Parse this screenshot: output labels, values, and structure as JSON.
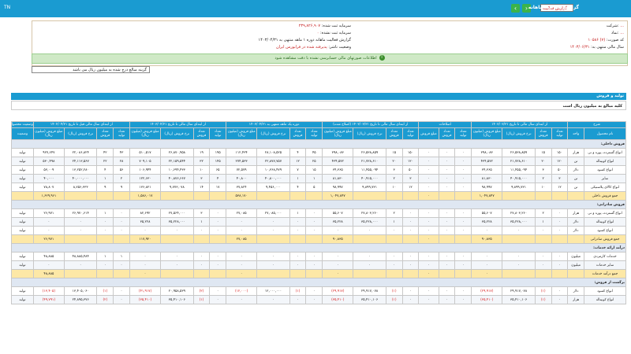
{
  "topbar": {
    "version": "TN",
    "title": "گزارش فعالیت ماهانه",
    "report_select": "گزارش فعالیت",
    "nav_prev": "‹",
    "nav_next": "›"
  },
  "info": {
    "company_label": "شرکت:",
    "company_value": "...",
    "symbol_label": "نماد:",
    "symbol_value": "...",
    "code_label": "کد صورت:",
    "code_value": "(۷) ۱۰۵۸۶",
    "fiscal_label": "سال مالی منتهی به:",
    "fiscal_value": "۱۴۰۳/۰۶/۳۱",
    "capital_label": "سرمایه ثبت شده:",
    "capital_value": "۲۳۹,۸۲۶,۹۰۷",
    "capital2_label": "سرمایه ثبت نشده:",
    "capital2_value": "۰",
    "report_label": "گزارش فعالیت ماهانه دوره ۱ ماهه منتهی به ۱۴۰۳/۰۴/۳۱",
    "status_label": "وضعیت ناشر:",
    "status_value": "پذیرفته شده در فرابورس ایران"
  },
  "success_message": "اطلاعات صورتهای مالی حسابرسی نشده با دقت مشاهده شود",
  "search_text": "گزینه مبالغ درج شده به میلیون ریال می باشد",
  "section": {
    "title": "تولید و فروش",
    "subtitle": "کلیه مبالغ به میلیون ریال است"
  },
  "table": {
    "groups": [
      "شرح",
      "از ابتدای سال مالی تا تاریخ ۱۴۰۳/۰۳/۳۱",
      "اصلاحات",
      "از ابتدای سال مالی تا تاریخ ۱۴۰۳/۰۳/۳۱ (اصلاح شده)",
      "دوره یک ماهه منتهی به ۱۴۰۳/۰۴/۳۱",
      "از ابتدای سال مالی تا تاریخ ۱۴۰۳/۰۴/۳۱",
      "از ابتدای سال مالی قبل تا تاریخ ۱۴۰۲/۰۴/۳۱",
      "وضعیت محصول"
    ],
    "subheaders": [
      "نام محصول",
      "واحد",
      "تعداد تولید",
      "تعداد فروش",
      "نرخ فروش (ریال)",
      "مبلغ فروش (میلیون ریال)",
      "تعداد تولید",
      "تعداد فروش",
      "مبلغ فروش",
      "تعداد تولید",
      "تعداد فروش",
      "نرخ فروش (ریال)",
      "مبلغ فروش (میلیون ریال)",
      "تعداد تولید",
      "تعداد فروش",
      "نرخ فروش (ریال)",
      "مبلغ فروش (میلیون ریال)",
      "تعداد تولید",
      "تعداد فروش",
      "نرخ فروش (ریال)",
      "مبلغ فروش (میلیون ریال)",
      "تعداد تولید",
      "تعداد فروش",
      "نرخ فروش (ریال)",
      "مبلغ فروش (میلیون ریال)",
      "وضعیت"
    ],
    "rows": [
      {
        "kind": "cat",
        "cells": [
          "فروش داخلی:"
        ]
      },
      {
        "kind": "dat",
        "cells": [
          "انواع گسترده، پوره و نی",
          "هزار",
          "۱۵۰",
          "۱۵",
          "۲۶,۵۳۸,۸۵۹",
          "۳۹۸,۰۸۳",
          "۰",
          "۰",
          "۰",
          "۱۵۰",
          "۱۵",
          "۲۶,۵۳۸,۸۵۹",
          "۳۹۸,۰۸۳",
          "۴۵",
          "۴",
          "۲۸,۱۰۸,۵۲۵",
          "۱۱۲,۴۳۴",
          "۱۹۵",
          "۱۹",
          "۲۶,۸۷۰,۹۵۸",
          "۵۱۰,۵۱۷",
          "۴۳",
          "۴۲",
          "۲۲,۰۸۶,۸۲۴",
          "۹۲۷,۶۴۷",
          "تولید"
        ]
      },
      {
        "kind": "alt",
        "cells": [
          "انواع کوبیتاله",
          "تن",
          "۱۲۰",
          "۲۰",
          "۲۱,۷۲۸,۶۱۰",
          "۴۳۴,۵۷۲",
          "۰",
          "۰",
          "۰",
          "۱۲۰",
          "۲۰",
          "۲۱,۷۲۸,۶۱۰",
          "۴۳۴,۵۷۲",
          "۲۵",
          "۱۲",
          "۲۲,۸۷۷,۷۵۷",
          "۲۷۴,۵۳۳",
          "۱۴۵",
          "۳۲",
          "۲۲,۱۵۹,۵۴۴",
          "۷۰۹,۱۰۵",
          "۲۸",
          "۲۲",
          "۲۴,۱۱۳,۵۶۷",
          "۵۳۰,۴۹۸",
          "تولید"
        ]
      },
      {
        "kind": "dat",
        "cells": [
          "انواع کسود",
          "دلار",
          "۵۰",
          "۳",
          "۱۱,۴۵۵,۰۹۴",
          "۳۴,۳۶۵",
          "۰",
          "۰",
          "۰",
          "۵۰",
          "۳",
          "۱۱,۴۵۵,۰۹۴",
          "۳۴,۳۶۵",
          "۱۵",
          "۷",
          "۱۰,۳۶۸,۴۷۹",
          "۷۲,۵۷۹",
          "۶۵",
          "۱۰",
          "۱۰,۶۹۴,۴۳۳",
          "۱۰۶,۹۴۴",
          "۵۶",
          "۴",
          "۱۳,۲۵۲,۲۸۰",
          "۵۳,۰۰۹",
          "تولید"
        ]
      },
      {
        "kind": "alt",
        "cells": [
          "سایر",
          "تن",
          "۳",
          "۲",
          "۴۰,۹۱۵,۰۰۰",
          "۸۱,۸۳۰",
          "۰",
          "۰",
          "۰",
          "۳",
          "۲",
          "۴۰,۹۱۵,۰۰۰",
          "۸۱,۸۳۰",
          "۱",
          "۱",
          "۴۰,۸۰۰,۰۰۰",
          "۴۰,۸۰۰",
          "۴",
          "۳",
          "۴۰,۸۷۶,۶۶۷",
          "۱۲۲,۶۳۰",
          "۲",
          "۱",
          "۴۰,۰۰۰,۰۰۰",
          "۴۰,۰۰۰",
          "تولید"
        ]
      },
      {
        "kind": "dat",
        "cells": [
          "انواع کالای پلاستیکی",
          "تن",
          "۱۲",
          "۱۰",
          "۹,۸۹۹,۷۳۱",
          "۹۸,۹۹۷",
          "۰",
          "۰",
          "۰",
          "۱۲",
          "۱۰",
          "۹,۸۹۹,۷۳۱",
          "۹۸,۹۹۷",
          "۵",
          "۴",
          "۹,۴۵۶,۰۰۰",
          "۳۷,۸۲۴",
          "۱۷",
          "۱۴",
          "۹,۷۷۳,۰۷۸",
          "۱۳۶,۸۲۱",
          "۹",
          "۹",
          "۸,۷۵۶,۳۳۳",
          "۷۸,۸۰۷",
          "تولید"
        ]
      },
      {
        "kind": "sum",
        "cells": [
          "جمع فروش داخلی",
          "",
          "",
          "",
          "",
          "۱,۰۴۷,۸۴۷",
          "",
          "",
          "۰",
          "",
          "",
          "",
          "۱,۰۴۷,۸۴۷",
          "",
          "",
          "",
          "۵۳۸,۱۷۰",
          "",
          "",
          "",
          "۱,۵۸۶,۰۱۷",
          "",
          "",
          "",
          "۱,۶۲۹,۹۶۱",
          ""
        ]
      },
      {
        "kind": "cat",
        "cells": [
          "فروش صادراتی:"
        ]
      },
      {
        "kind": "dat",
        "cells": [
          "انواع گسترده، پوره و نی",
          "هزار",
          "۰",
          "۲",
          "۲۷,۸۰۳,۲۶۰",
          "۵۵,۶۰۷",
          "۰",
          "۰",
          "۰",
          "۰",
          "۲",
          "۲۷,۸۰۳,۲۶۰",
          "۵۵,۶۰۷",
          "۰",
          "۱",
          "۲۷,۰۸۵,۰۰۰",
          "۲۷,۰۸۵",
          "۰",
          "۳",
          "۲۷,۵۶۴,۰۰۰",
          "۸۲,۶۹۲",
          "۰",
          "۱",
          "۲۶,۹۷۰,۶۱۴",
          "۲۶,۹۷۱",
          "تولید"
        ]
      },
      {
        "kind": "alt",
        "cells": [
          "انواع کوبیتاله",
          "دلار",
          "۰",
          "۱",
          "۳۵,۲۲۸,۰۰۰",
          "۳۵,۲۲۸",
          "۰",
          "۰",
          "۰",
          "۰",
          "۱",
          "۳۵,۲۲۸,۰۰۰",
          "۳۵,۲۲۸",
          "۰",
          "۰",
          "۰",
          "۰",
          "۰",
          "۱",
          "۳۵,۲۲۸,۰۰۰",
          "۳۵,۲۲۸",
          "۰",
          "۰",
          "۰",
          "۰",
          "تولید"
        ]
      },
      {
        "kind": "dat",
        "cells": [
          "انواع کسود",
          "دلار",
          "۰",
          "۰",
          "۰",
          "۰",
          "۰",
          "۰",
          "۰",
          "۰",
          "۰",
          "۰",
          "۰",
          "۰",
          "۰",
          "۰",
          "۰",
          "۰",
          "۰",
          "۰",
          "۰",
          "۰",
          "۰",
          "۰",
          "۰",
          "تولید"
        ]
      },
      {
        "kind": "sum",
        "cells": [
          "جمع فروش صادراتی",
          "",
          "",
          "",
          "",
          "۹۰,۸۳۵",
          "",
          "",
          "۰",
          "",
          "",
          "",
          "۹۰,۸۳۵",
          "",
          "",
          "",
          "۲۷,۰۸۵",
          "",
          "",
          "",
          "۱۱۷,۹۲۰",
          "",
          "",
          "",
          "۲۶,۹۷۱",
          ""
        ]
      },
      {
        "kind": "cat",
        "cells": [
          "درآمد ارائه خدمات:"
        ]
      },
      {
        "kind": "dat",
        "cells": [
          "خدمات کارمزدی",
          "میلیون",
          "۰",
          "۰",
          "۰",
          "۰",
          "۰",
          "۰",
          "۰",
          "۰",
          "۰",
          "۰",
          "۰",
          "۰",
          "۰",
          "۰",
          "۰",
          "۰",
          "۰",
          "۰",
          "۰",
          "۱",
          "۱",
          "۴۸,۸۸۵,۴۸۴",
          "۴۸,۸۸۵",
          "تولید"
        ]
      },
      {
        "kind": "alt",
        "cells": [
          "سایر خدمات",
          "میلیون",
          "۰",
          "۰",
          "۰",
          "۰",
          "۰",
          "۰",
          "۰",
          "۰",
          "۰",
          "۰",
          "۰",
          "۰",
          "۰",
          "۰",
          "۰",
          "۰",
          "۰",
          "۰",
          "۰",
          "۰",
          "۰",
          "۰",
          "۰",
          "تولید"
        ]
      },
      {
        "kind": "sum",
        "cells": [
          "جمع درآمد خدمات",
          "",
          "",
          "",
          "",
          "۰",
          "",
          "",
          "۰",
          "",
          "",
          "",
          "۰",
          "",
          "",
          "",
          "۰",
          "",
          "",
          "",
          "۰",
          "",
          "",
          "",
          "۴۸,۸۸۵",
          ""
        ]
      },
      {
        "kind": "cat",
        "cells": [
          "برگشت از فروش:"
        ]
      },
      {
        "kind": "dat",
        "cells": [
          "انواع کسود",
          "دلار",
          "۰",
          "(۱)",
          "۲۹,۹۱۷,۰۷۸",
          "(۲۹,۹۱۷)",
          "۰",
          "۰",
          "۰",
          "۰",
          "(۱)",
          "۲۹,۹۱۷,۰۷۸",
          "(۲۹,۹۱۷)",
          "۰",
          "(۱)",
          "۱۲,۰۰۰,۰۰۰",
          "(۱۲,۰۰۰)",
          "۰",
          "(۲)",
          "۲۰,۹۵۸,۵۳۹",
          "(۴۱,۹۱۷)",
          "۰",
          "(۱)",
          "۱۳,۴۰۵,۰۶۰",
          "(۱۳,۴۰۵)",
          "تولید"
        ]
      },
      {
        "kind": "alt",
        "cells": [
          "انواع کوبیتاله",
          "هزار",
          "۰",
          "(۱)",
          "۳۵,۴۱۰,۱۰۶",
          "(۳۵,۴۱۰)",
          "۰",
          "۰",
          "۰",
          "۰",
          "(۱)",
          "۳۵,۴۱۰,۱۰۶",
          "(۳۵,۴۱۰)",
          "۰",
          "۰",
          "۰",
          "۰",
          "۰",
          "(۱)",
          "۳۵,۴۱۰,۱۰۶",
          "(۳۵,۴۱۰)",
          "۰",
          "(۲)",
          "۲۴,۸۹۵,۳۷۶",
          "(۴۹,۷۹۱)",
          "تولید"
        ]
      }
    ]
  },
  "watermark": "@codal"
}
